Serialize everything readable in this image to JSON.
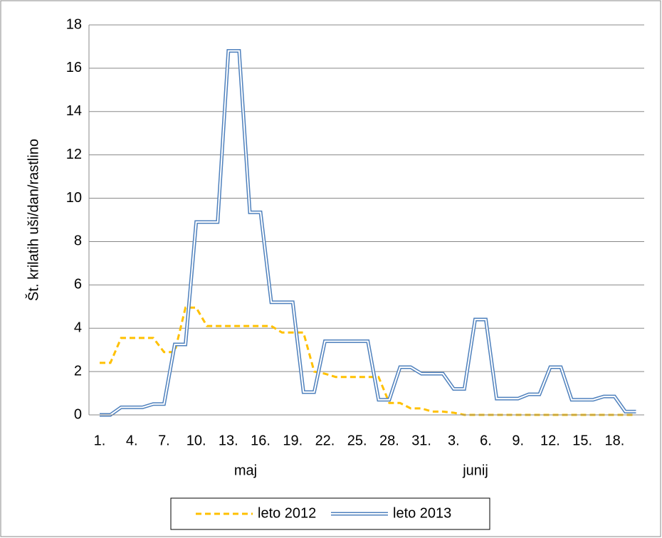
{
  "chart_data": {
    "type": "line",
    "y_label": "Št. krilatih uši/dan/rastlino",
    "x_groups": [
      "maj",
      "junij"
    ],
    "categories": [
      "1.",
      null,
      null,
      "4.",
      null,
      null,
      "7.",
      null,
      null,
      "10.",
      null,
      null,
      "13.",
      null,
      null,
      "16.",
      null,
      null,
      "19.",
      null,
      null,
      "22.",
      null,
      null,
      "25.",
      null,
      null,
      "28.",
      null,
      null,
      "31.",
      null,
      null,
      "3.",
      null,
      null,
      "6.",
      null,
      null,
      "9.",
      null,
      null,
      "12.",
      null,
      null,
      "15.",
      null,
      null,
      "18.",
      null,
      null
    ],
    "series": [
      {
        "name": "leto 2012",
        "color": "#ffc000",
        "style": "dashed",
        "values": [
          2.4,
          2.4,
          3.55,
          3.55,
          3.55,
          3.55,
          2.9,
          2.9,
          4.95,
          4.95,
          4.1,
          4.1,
          4.1,
          4.1,
          4.1,
          4.1,
          4.1,
          3.8,
          3.8,
          3.8,
          2.0,
          1.9,
          1.75,
          1.75,
          1.75,
          1.75,
          1.75,
          0.55,
          0.55,
          0.3,
          0.3,
          0.15,
          0.15,
          0.1,
          0,
          0,
          0,
          0,
          0,
          0,
          0,
          0,
          0,
          0,
          0,
          0,
          0,
          0,
          0,
          0,
          0
        ]
      },
      {
        "name": "leto 2013",
        "color": "#4f81bd",
        "style": "double",
        "values": [
          0,
          0,
          0.35,
          0.35,
          0.35,
          0.5,
          0.5,
          3.25,
          3.25,
          8.9,
          8.9,
          8.9,
          16.8,
          16.8,
          9.35,
          9.35,
          5.2,
          5.2,
          5.2,
          1.05,
          1.05,
          3.4,
          3.4,
          3.4,
          3.4,
          3.4,
          0.7,
          0.7,
          2.2,
          2.2,
          1.9,
          1.9,
          1.9,
          1.2,
          1.2,
          4.4,
          4.4,
          0.75,
          0.75,
          0.75,
          0.95,
          0.95,
          2.2,
          2.2,
          0.7,
          0.7,
          0.7,
          0.85,
          0.85,
          0.15,
          0.15
        ]
      }
    ],
    "ylim": [
      0,
      18
    ],
    "yticks": [
      0,
      2,
      4,
      6,
      8,
      10,
      12,
      14,
      16,
      18
    ],
    "grid": true,
    "legend": "bottom"
  }
}
